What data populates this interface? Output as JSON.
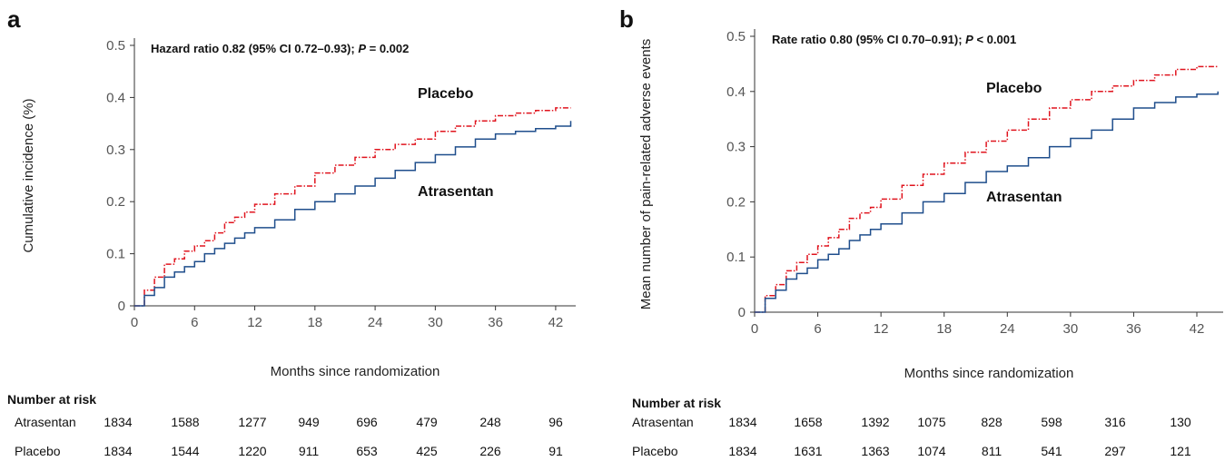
{
  "chart_data": [
    {
      "panel": "a",
      "type": "line",
      "annotation_prefix": "Hazard ratio 0.82 (95% CI 0.72–0.93); ",
      "annotation_p": "P",
      "annotation_suffix": " = 0.002",
      "xlabel": "Months since randomization",
      "ylabel": "Cumulative incidence (%)",
      "xlim": [
        0,
        44
      ],
      "ylim": [
        0,
        0.5
      ],
      "xticks": [
        0,
        6,
        12,
        18,
        24,
        30,
        36,
        42
      ],
      "yticks": [
        0,
        0.1,
        0.2,
        0.3,
        0.4,
        0.5
      ],
      "ytick_labels": [
        "0",
        "0.1",
        "0.2",
        "0.3",
        "0.4",
        "0.5"
      ],
      "series": [
        {
          "name": "Placebo",
          "color": "#e0141e",
          "dash": "dashdot",
          "x": [
            0,
            1,
            2,
            3,
            4,
            5,
            6,
            7,
            8,
            9,
            10,
            11,
            12,
            14,
            16,
            18,
            20,
            22,
            24,
            26,
            28,
            30,
            32,
            34,
            36,
            38,
            40,
            42,
            43.5
          ],
          "y": [
            0,
            0.03,
            0.055,
            0.08,
            0.09,
            0.105,
            0.115,
            0.125,
            0.14,
            0.16,
            0.17,
            0.18,
            0.195,
            0.215,
            0.23,
            0.255,
            0.27,
            0.285,
            0.3,
            0.31,
            0.32,
            0.335,
            0.345,
            0.355,
            0.365,
            0.37,
            0.375,
            0.38,
            0.38
          ]
        },
        {
          "name": "Atrasentan",
          "color": "#1f4e8c",
          "dash": "solid",
          "x": [
            0,
            1,
            2,
            3,
            4,
            5,
            6,
            7,
            8,
            9,
            10,
            11,
            12,
            14,
            16,
            18,
            20,
            22,
            24,
            26,
            28,
            30,
            32,
            34,
            36,
            38,
            40,
            42,
            43.5
          ],
          "y": [
            0,
            0.02,
            0.035,
            0.055,
            0.065,
            0.075,
            0.085,
            0.1,
            0.11,
            0.12,
            0.13,
            0.14,
            0.15,
            0.165,
            0.185,
            0.2,
            0.215,
            0.23,
            0.245,
            0.26,
            0.275,
            0.29,
            0.305,
            0.32,
            0.33,
            0.335,
            0.34,
            0.345,
            0.355
          ]
        }
      ],
      "number_at_risk": {
        "title": "Number at risk",
        "rows": [
          {
            "label": "Atrasentan",
            "values": [
              "1834",
              "1588",
              "1277",
              "949",
              "696",
              "479",
              "248",
              "96"
            ]
          },
          {
            "label": "Placebo",
            "values": [
              "1834",
              "1544",
              "1220",
              "911",
              "653",
              "425",
              "226",
              "91"
            ]
          }
        ]
      }
    },
    {
      "panel": "b",
      "type": "line",
      "annotation_prefix": "Rate ratio 0.80 (95% CI 0.70–0.91); ",
      "annotation_p": "P",
      "annotation_suffix": " < 0.001",
      "xlabel": "Months since randomization",
      "ylabel": "Mean number of pain-related adverse events",
      "xlim": [
        0,
        44.5
      ],
      "ylim": [
        0,
        0.5
      ],
      "xticks": [
        0,
        6,
        12,
        18,
        24,
        30,
        36,
        42
      ],
      "yticks": [
        0,
        0.1,
        0.2,
        0.3,
        0.4,
        0.5
      ],
      "ytick_labels": [
        "0",
        "0.1",
        "0.2",
        "0.3",
        "0.4",
        "0.5"
      ],
      "series": [
        {
          "name": "Placebo",
          "color": "#e0141e",
          "dash": "dashdot",
          "x": [
            0,
            1,
            2,
            3,
            4,
            5,
            6,
            7,
            8,
            9,
            10,
            11,
            12,
            14,
            16,
            18,
            20,
            22,
            24,
            26,
            28,
            30,
            32,
            34,
            36,
            38,
            40,
            42,
            44
          ],
          "y": [
            0,
            0.03,
            0.05,
            0.075,
            0.09,
            0.105,
            0.12,
            0.135,
            0.15,
            0.17,
            0.18,
            0.19,
            0.205,
            0.23,
            0.25,
            0.27,
            0.29,
            0.31,
            0.33,
            0.35,
            0.37,
            0.385,
            0.4,
            0.41,
            0.42,
            0.43,
            0.44,
            0.445,
            0.445
          ]
        },
        {
          "name": "Atrasentan",
          "color": "#1f4e8c",
          "dash": "solid",
          "x": [
            0,
            1,
            2,
            3,
            4,
            5,
            6,
            7,
            8,
            9,
            10,
            11,
            12,
            14,
            16,
            18,
            20,
            22,
            24,
            26,
            28,
            30,
            32,
            34,
            36,
            38,
            40,
            42,
            44
          ],
          "y": [
            0,
            0.025,
            0.04,
            0.06,
            0.07,
            0.08,
            0.095,
            0.105,
            0.115,
            0.13,
            0.14,
            0.15,
            0.16,
            0.18,
            0.2,
            0.215,
            0.235,
            0.255,
            0.265,
            0.28,
            0.3,
            0.315,
            0.33,
            0.35,
            0.37,
            0.38,
            0.39,
            0.395,
            0.4
          ]
        }
      ],
      "number_at_risk": {
        "title": "Number at risk",
        "rows": [
          {
            "label": "Atrasentan",
            "values": [
              "1834",
              "1658",
              "1392",
              "1075",
              "828",
              "598",
              "316",
              "130"
            ]
          },
          {
            "label": "Placebo",
            "values": [
              "1834",
              "1631",
              "1363",
              "1074",
              "811",
              "541",
              "297",
              "121"
            ]
          }
        ]
      }
    }
  ],
  "panels": {
    "a": {
      "letter": "a"
    },
    "b": {
      "letter": "b"
    }
  }
}
